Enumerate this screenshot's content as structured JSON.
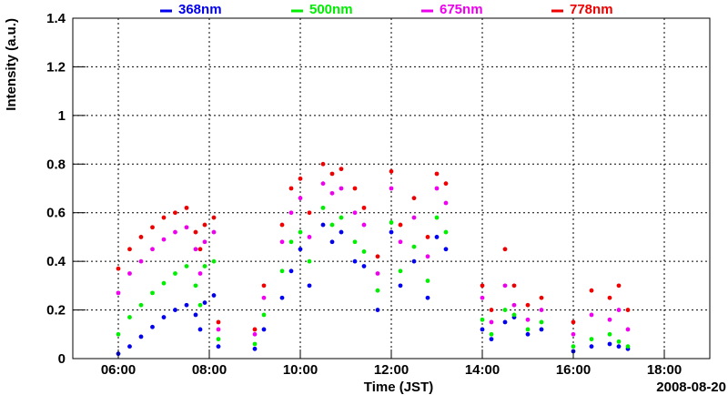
{
  "chart_data": {
    "type": "scatter",
    "title": "",
    "xlabel": "Time (JST)",
    "ylabel": "Intensity (a.u.)",
    "date_label": "2008-08-20",
    "x_unit": "hours JST",
    "xlim": [
      5.0,
      19.0
    ],
    "ylim": [
      0,
      1.4
    ],
    "grid": true,
    "legend_position": "top",
    "x_ticks": [
      {
        "value": 6,
        "label": "06:00"
      },
      {
        "value": 8,
        "label": "08:00"
      },
      {
        "value": 10,
        "label": "10:00"
      },
      {
        "value": 12,
        "label": "12:00"
      },
      {
        "value": 14,
        "label": "14:00"
      },
      {
        "value": 16,
        "label": "16:00"
      },
      {
        "value": 18,
        "label": "18:00"
      }
    ],
    "y_ticks": [
      {
        "value": 0,
        "label": "0"
      },
      {
        "value": 0.2,
        "label": "0.2"
      },
      {
        "value": 0.4,
        "label": "0.4"
      },
      {
        "value": 0.6,
        "label": "0.6"
      },
      {
        "value": 0.8,
        "label": "0.8"
      },
      {
        "value": 1.0,
        "label": "1"
      },
      {
        "value": 1.2,
        "label": "1.2"
      },
      {
        "value": 1.4,
        "label": "1.4"
      }
    ],
    "series": [
      {
        "name": "368nm",
        "color": "#0000ee",
        "x": [
          6.0,
          6.25,
          6.5,
          6.75,
          7.0,
          7.25,
          7.5,
          7.7,
          7.8,
          7.9,
          8.1,
          8.2,
          9.0,
          9.2,
          9.6,
          9.8,
          10.0,
          10.2,
          10.5,
          10.7,
          10.9,
          11.2,
          11.4,
          11.7,
          12.0,
          12.2,
          12.5,
          12.8,
          13.0,
          13.2,
          14.0,
          14.2,
          14.5,
          14.7,
          15.0,
          15.3,
          16.0,
          16.4,
          16.8,
          17.0,
          17.2
        ],
        "values": [
          0.02,
          0.05,
          0.09,
          0.13,
          0.17,
          0.2,
          0.22,
          0.18,
          0.12,
          0.23,
          0.26,
          0.05,
          0.04,
          0.12,
          0.25,
          0.36,
          0.45,
          0.3,
          0.55,
          0.48,
          0.52,
          0.4,
          0.38,
          0.2,
          0.52,
          0.3,
          0.4,
          0.25,
          0.5,
          0.45,
          0.12,
          0.08,
          0.15,
          0.17,
          0.1,
          0.12,
          0.03,
          0.05,
          0.06,
          0.05,
          0.04
        ]
      },
      {
        "name": "500nm",
        "color": "#00ee00",
        "x": [
          6.0,
          6.25,
          6.5,
          6.75,
          7.0,
          7.25,
          7.5,
          7.7,
          7.8,
          7.9,
          8.1,
          8.2,
          9.0,
          9.2,
          9.6,
          9.8,
          10.0,
          10.2,
          10.5,
          10.7,
          10.9,
          11.2,
          11.4,
          11.7,
          12.0,
          12.2,
          12.5,
          12.8,
          13.0,
          13.2,
          14.0,
          14.2,
          14.5,
          14.7,
          15.0,
          15.3,
          16.0,
          16.4,
          16.8,
          17.0,
          17.2
        ],
        "values": [
          0.1,
          0.17,
          0.22,
          0.27,
          0.31,
          0.35,
          0.38,
          0.3,
          0.22,
          0.38,
          0.4,
          0.08,
          0.06,
          0.18,
          0.36,
          0.48,
          0.52,
          0.4,
          0.62,
          0.55,
          0.58,
          0.48,
          0.44,
          0.28,
          0.56,
          0.36,
          0.46,
          0.32,
          0.58,
          0.52,
          0.16,
          0.1,
          0.2,
          0.18,
          0.12,
          0.15,
          0.05,
          0.08,
          0.1,
          0.07,
          0.05
        ]
      },
      {
        "name": "675nm",
        "color": "#ee00ee",
        "x": [
          6.0,
          6.25,
          6.5,
          6.75,
          7.0,
          7.25,
          7.5,
          7.7,
          7.8,
          7.9,
          8.1,
          8.2,
          9.0,
          9.2,
          9.6,
          9.8,
          10.0,
          10.2,
          10.5,
          10.7,
          10.9,
          11.2,
          11.4,
          11.7,
          12.0,
          12.2,
          12.5,
          12.8,
          13.0,
          13.2,
          14.0,
          14.2,
          14.5,
          14.7,
          15.0,
          15.3,
          16.0,
          16.4,
          16.8,
          17.0,
          17.2
        ],
        "values": [
          0.27,
          0.35,
          0.4,
          0.45,
          0.49,
          0.52,
          0.54,
          0.45,
          0.35,
          0.48,
          0.52,
          0.12,
          0.1,
          0.25,
          0.48,
          0.6,
          0.66,
          0.5,
          0.72,
          0.68,
          0.7,
          0.6,
          0.55,
          0.35,
          0.7,
          0.48,
          0.58,
          0.42,
          0.7,
          0.64,
          0.25,
          0.15,
          0.3,
          0.22,
          0.16,
          0.2,
          0.1,
          0.18,
          0.16,
          0.2,
          0.12
        ]
      },
      {
        "name": "778nm",
        "color": "#ee0000",
        "x": [
          6.0,
          6.25,
          6.5,
          6.75,
          7.0,
          7.25,
          7.5,
          7.7,
          7.8,
          7.9,
          8.1,
          8.2,
          9.0,
          9.2,
          9.6,
          9.8,
          10.0,
          10.2,
          10.5,
          10.7,
          10.9,
          11.2,
          11.4,
          11.7,
          12.0,
          12.2,
          12.5,
          12.8,
          13.0,
          13.2,
          14.0,
          14.2,
          14.5,
          14.7,
          15.0,
          15.3,
          16.0,
          16.4,
          16.8,
          17.0,
          17.2
        ],
        "values": [
          0.37,
          0.45,
          0.5,
          0.54,
          0.58,
          0.6,
          0.62,
          0.52,
          0.45,
          0.55,
          0.58,
          0.15,
          0.12,
          0.3,
          0.55,
          0.7,
          0.74,
          0.6,
          0.8,
          0.76,
          0.78,
          0.7,
          0.62,
          0.42,
          0.77,
          0.55,
          0.66,
          0.5,
          0.76,
          0.72,
          0.3,
          0.2,
          0.45,
          0.3,
          0.22,
          0.25,
          0.15,
          0.28,
          0.25,
          0.3,
          0.2
        ]
      }
    ]
  }
}
